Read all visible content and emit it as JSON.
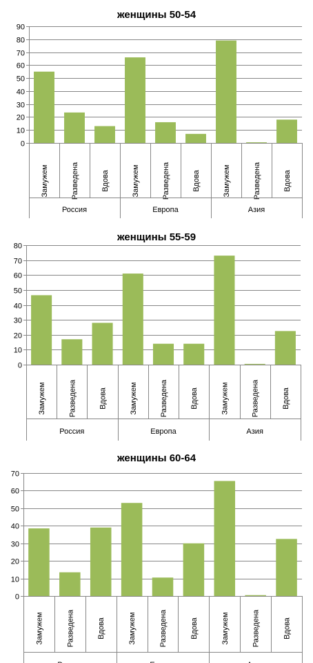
{
  "chart_data": [
    {
      "type": "bar",
      "title": "женщины 50-54",
      "xlabel": "",
      "ylabel": "",
      "ylim": [
        0,
        90
      ],
      "yticks": [
        0,
        10,
        20,
        30,
        40,
        50,
        60,
        70,
        80,
        90
      ],
      "grid": true,
      "bar_color": "#9BBB59",
      "categories": [
        "Замужем",
        "Разведена",
        "Вдова",
        "Замужем",
        "Разведена",
        "Вдова",
        "Замужем",
        "Разведена",
        "Вдова"
      ],
      "groups": [
        {
          "label": "Россия",
          "count": 3
        },
        {
          "label": "Европа",
          "count": 3
        },
        {
          "label": "Азия",
          "count": 3
        }
      ],
      "values": [
        55,
        23.5,
        13,
        66,
        16,
        7,
        79,
        0.5,
        18
      ]
    },
    {
      "type": "bar",
      "title": "женщины 55-59",
      "xlabel": "",
      "ylabel": "",
      "ylim": [
        0,
        80
      ],
      "yticks": [
        0,
        10,
        20,
        30,
        40,
        50,
        60,
        70,
        80
      ],
      "grid": true,
      "bar_color": "#9BBB59",
      "categories": [
        "Замужем",
        "Разведена",
        "Вдова",
        "Замужем",
        "Разведена",
        "Вдова",
        "Замужем",
        "Разведена",
        "Вдова"
      ],
      "groups": [
        {
          "label": "Россия",
          "count": 3
        },
        {
          "label": "Европа",
          "count": 3
        },
        {
          "label": "Азия",
          "count": 3
        }
      ],
      "values": [
        46.5,
        17,
        28,
        61,
        14,
        14,
        73,
        0.5,
        22.5
      ]
    },
    {
      "type": "bar",
      "title": "женщины 60-64",
      "xlabel": "",
      "ylabel": "",
      "ylim": [
        0,
        70
      ],
      "yticks": [
        0,
        10,
        20,
        30,
        40,
        50,
        60,
        70
      ],
      "grid": true,
      "bar_color": "#9BBB59",
      "categories": [
        "Замужем",
        "Разведена",
        "Вдова",
        "Замужем",
        "Разведена",
        "Вдова",
        "Замужем",
        "Разведена",
        "Вдова"
      ],
      "groups": [
        {
          "label": "Россия",
          "count": 3
        },
        {
          "label": "Европа",
          "count": 3
        },
        {
          "label": "Азия",
          "count": 3
        }
      ],
      "values": [
        38.5,
        13.5,
        39,
        53,
        10.5,
        30,
        65.5,
        0.5,
        32.5
      ]
    }
  ]
}
